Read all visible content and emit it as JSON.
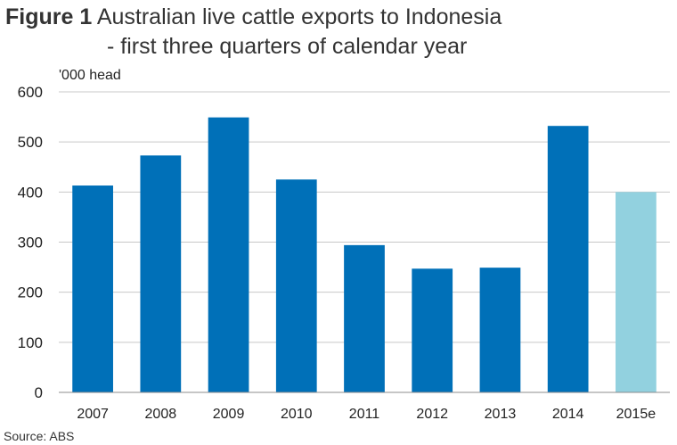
{
  "figure_label": "Figure 1",
  "title_line1": "Australian live cattle exports to Indonesia",
  "title_line2": "- first three quarters of calendar year",
  "source": "Source: ABS",
  "chart_data": {
    "type": "bar",
    "title": "Australian live cattle exports to Indonesia - first three quarters of calendar year",
    "ylabel": "'000 head",
    "xlabel": "",
    "categories": [
      "2007",
      "2008",
      "2009",
      "2010",
      "2011",
      "2012",
      "2013",
      "2014",
      "2015e"
    ],
    "values": [
      413,
      473,
      549,
      425,
      294,
      247,
      249,
      532,
      400
    ],
    "estimate_category": "2015e",
    "ylim": [
      0,
      600
    ],
    "yticks": [
      0,
      100,
      200,
      300,
      400,
      500,
      600
    ],
    "grid": true,
    "colors": {
      "actual": "#0070b8",
      "estimate": "#92d1df",
      "grid": "#c8c8c8",
      "axis": "#8c8c8c"
    }
  }
}
